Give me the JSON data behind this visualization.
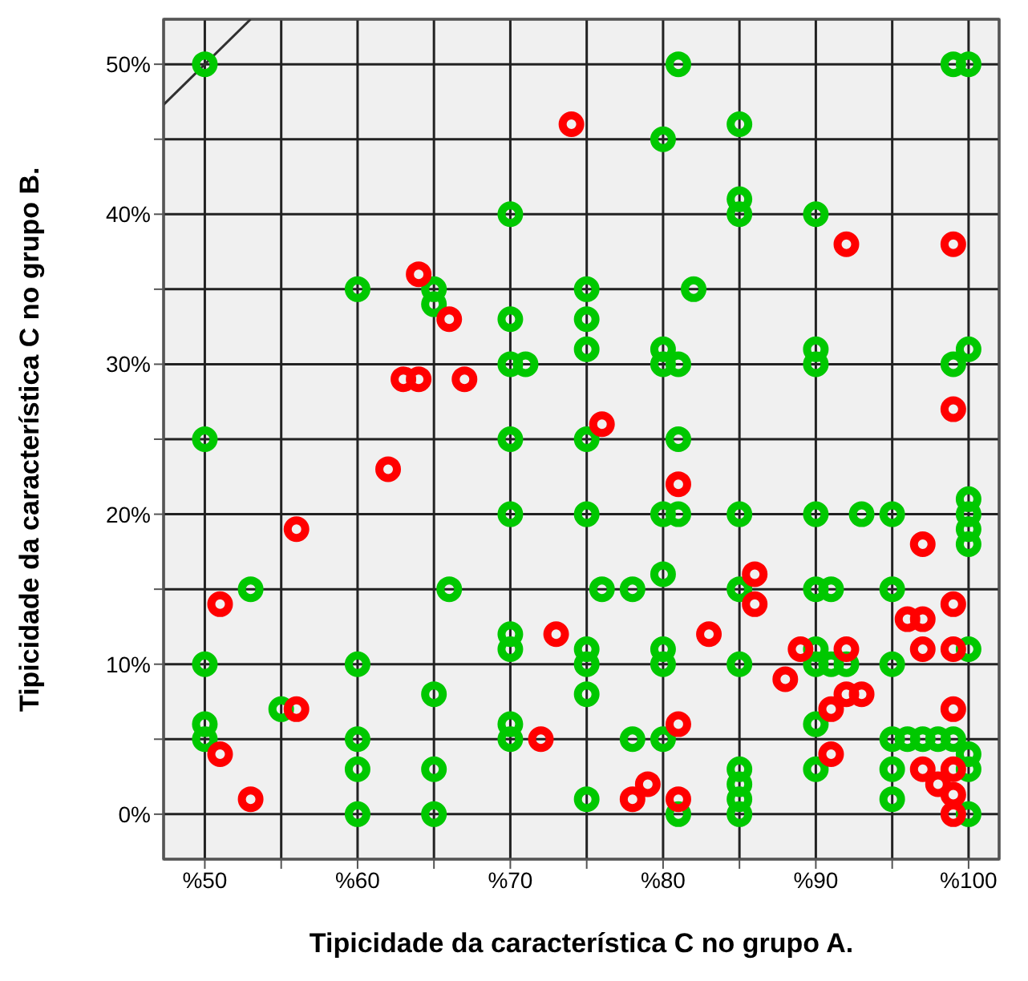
{
  "chart_data": {
    "type": "scatter",
    "xlabel": "Tipicidade da característica C no grupo A.",
    "ylabel": "Tipicidade da característica C no grupo B.",
    "xlim": [
      47.3,
      102
    ],
    "ylim": [
      -3,
      53
    ],
    "xticks": [
      {
        "value": 50,
        "label": "%50"
      },
      {
        "value": 55,
        "label": null
      },
      {
        "value": 60,
        "label": "%60"
      },
      {
        "value": 65,
        "label": null
      },
      {
        "value": 70,
        "label": "%70"
      },
      {
        "value": 75,
        "label": null
      },
      {
        "value": 80,
        "label": "%80"
      },
      {
        "value": 85,
        "label": null
      },
      {
        "value": 90,
        "label": "%90"
      },
      {
        "value": 95,
        "label": null
      },
      {
        "value": 100,
        "label": "%100"
      }
    ],
    "yticks": [
      {
        "value": 0,
        "label": "0%"
      },
      {
        "value": 5,
        "label": null
      },
      {
        "value": 10,
        "label": "10%"
      },
      {
        "value": 15,
        "label": null
      },
      {
        "value": 20,
        "label": "20%"
      },
      {
        "value": 25,
        "label": null
      },
      {
        "value": 30,
        "label": "30%"
      },
      {
        "value": 35,
        "label": null
      },
      {
        "value": 40,
        "label": "40%"
      },
      {
        "value": 45,
        "label": null
      },
      {
        "value": 50,
        "label": "50%"
      }
    ],
    "grid": true,
    "marker": "circle",
    "series": [
      {
        "color": "#00c800",
        "x": [
          50,
          50,
          50,
          50,
          50,
          53,
          55,
          60,
          60,
          60,
          60,
          60,
          65,
          65,
          65,
          65,
          65,
          66,
          70,
          70,
          70,
          71,
          70,
          70,
          70,
          70,
          70,
          70,
          75,
          75,
          75,
          75,
          75,
          75,
          75,
          75,
          75,
          76,
          78,
          78,
          80,
          80,
          80,
          80,
          80,
          80,
          80,
          80,
          81,
          81,
          81,
          81,
          81,
          82,
          85,
          85,
          85,
          85,
          85,
          85,
          85,
          85,
          85,
          85,
          90,
          90,
          90,
          90,
          90,
          90,
          90,
          91,
          92,
          90,
          90,
          91,
          93,
          95,
          95,
          95,
          95,
          95,
          95,
          96,
          97,
          98,
          99,
          99,
          99,
          100,
          100,
          100,
          100,
          100,
          100,
          100,
          100,
          100,
          100
        ],
        "values": [
          50,
          25,
          10,
          6,
          5,
          15,
          7,
          35,
          10,
          5,
          3,
          0,
          35,
          34,
          8,
          3,
          0,
          15,
          40,
          33,
          30,
          30,
          25,
          20,
          12,
          11,
          6,
          5,
          35,
          33,
          31,
          25,
          20,
          11,
          10,
          8,
          1,
          15,
          15,
          5,
          45,
          31,
          30,
          20,
          16,
          11,
          10,
          5,
          50,
          30,
          25,
          20,
          0,
          35,
          46,
          41,
          40,
          20,
          15,
          10,
          3,
          2,
          1,
          0,
          40,
          31,
          30,
          20,
          15,
          11,
          10,
          10,
          10,
          6,
          3,
          15,
          20,
          15,
          10,
          5,
          3,
          1,
          20,
          5,
          5,
          5,
          5,
          50,
          30,
          20,
          50,
          31,
          21,
          19,
          18,
          11,
          4,
          3,
          0
        ]
      },
      {
        "color": "#ff0000",
        "x": [
          51,
          51,
          53,
          56,
          56,
          62,
          63,
          64,
          64,
          66,
          67,
          72,
          73,
          74,
          76,
          78,
          79,
          81,
          81,
          81,
          83,
          86,
          86,
          88,
          89,
          91,
          91,
          92,
          92,
          92,
          93,
          96,
          97,
          97,
          97,
          97,
          98,
          99,
          99,
          99,
          99,
          99,
          99,
          99,
          99
        ],
        "values": [
          14,
          4,
          1,
          19,
          7,
          23,
          29,
          29,
          36,
          33,
          29,
          5,
          12,
          46,
          26,
          1,
          2,
          22,
          6,
          1,
          12,
          16,
          14,
          9,
          11,
          7,
          4,
          38,
          11,
          8,
          8,
          13,
          13,
          18,
          11,
          3,
          2,
          38,
          27,
          14,
          11,
          7,
          3,
          1.3,
          0
        ]
      },
      {
        "type": "line",
        "marker": "none",
        "color": "#303030",
        "x": [
          47.3,
          53
        ],
        "values": [
          47.3,
          53
        ]
      }
    ]
  }
}
